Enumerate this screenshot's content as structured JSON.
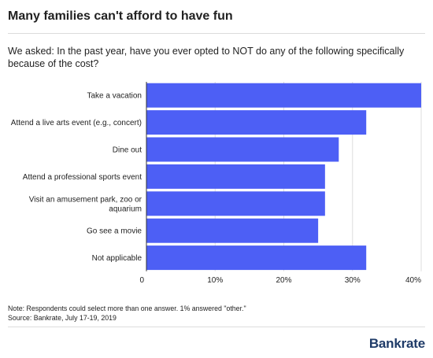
{
  "header": {
    "title": "Many families can't afford to have fun"
  },
  "question": "We asked: In the past year, have you ever opted to NOT do any of the following specifically because of the cost?",
  "footer": {
    "note": "Note: Respondents could select more than one answer. 1% answered \"other.\"",
    "source": "Source: Bankrate, July 17-19, 2019",
    "logo": "Bankrate"
  },
  "chart_data": {
    "type": "bar",
    "orientation": "horizontal",
    "categories": [
      [
        "Take a vacation"
      ],
      [
        "Attend a live arts event (e.g., concert)"
      ],
      [
        "Dine out"
      ],
      [
        "Attend a professional sports event"
      ],
      [
        "Visit an amusement park, zoo or",
        "aquarium"
      ],
      [
        "Go see a movie"
      ],
      [
        "Not applicable"
      ]
    ],
    "values": [
      40,
      32,
      28,
      26,
      26,
      25,
      32
    ],
    "xlim": [
      0,
      40
    ],
    "xticks": [
      0,
      10,
      20,
      30,
      40
    ],
    "xtick_labels": [
      "0",
      "10%",
      "20%",
      "30%",
      "40%"
    ],
    "bar_color": "#4d5ff5",
    "grid": "vertical"
  }
}
